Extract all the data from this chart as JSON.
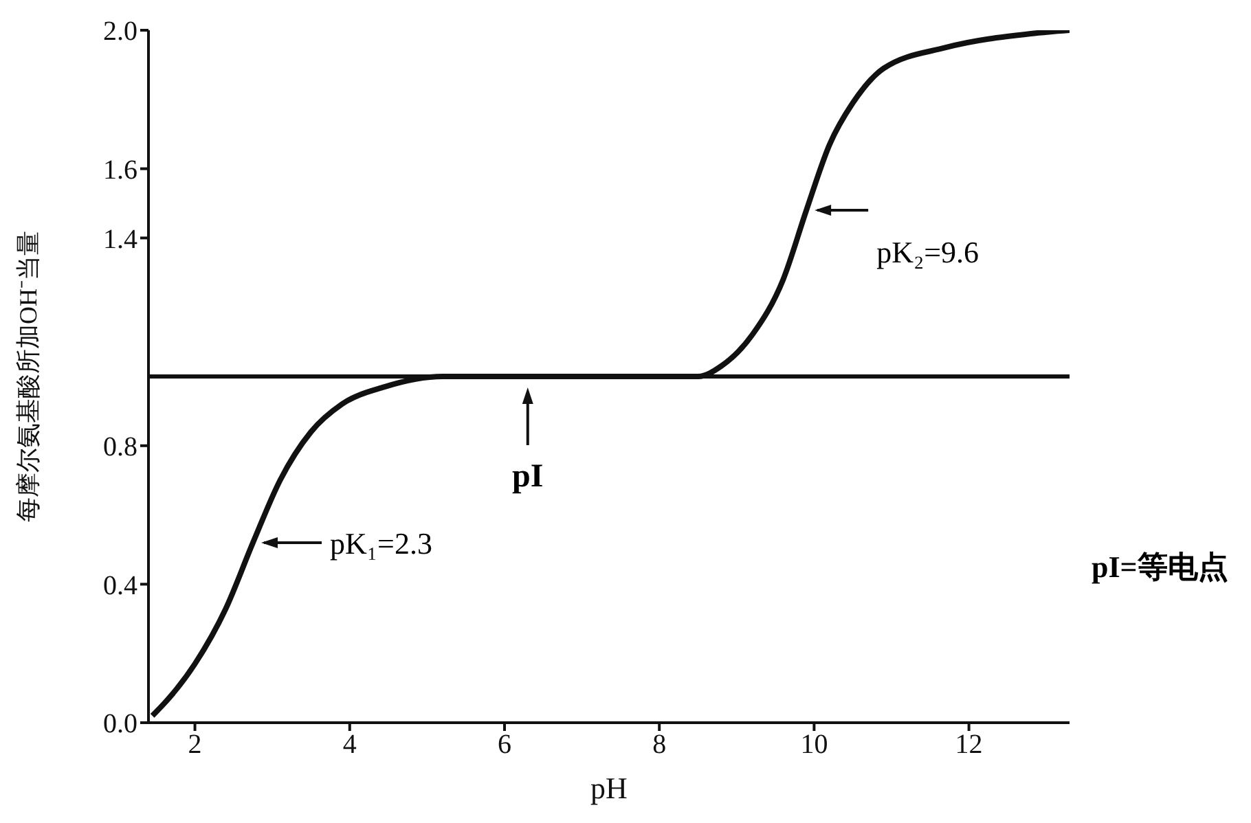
{
  "chart_data": {
    "type": "line",
    "xlabel": "pH",
    "ylabel": "每摩尔氨基酸所加OH⁻当量",
    "x": [
      1.45,
      1.7,
      2.0,
      2.4,
      2.75,
      3.1,
      3.5,
      3.9,
      4.45,
      5.2,
      6.0,
      7.0,
      8.0,
      8.5,
      8.8,
      9.2,
      9.6,
      9.9,
      10.2,
      10.5,
      10.9,
      11.7,
      12.8,
      13.3
    ],
    "series": [
      {
        "color": "#111111",
        "values": [
          0.02,
          0.08,
          0.17,
          0.33,
          0.52,
          0.7,
          0.84,
          0.92,
          0.97,
          1.0,
          1.0,
          1.0,
          1.0,
          1.0,
          1.03,
          1.12,
          1.28,
          1.48,
          1.67,
          1.79,
          1.89,
          1.95,
          1.99,
          2.0
        ]
      }
    ],
    "xlim": [
      1.4,
      13.3
    ],
    "xticks": [
      2,
      4,
      6,
      8,
      10,
      12
    ],
    "ylim": [
      0,
      2
    ],
    "yticks": [
      {
        "value": 0,
        "label": "0.0"
      },
      0.4,
      0.8,
      1.4,
      1.6,
      {
        "value": 2,
        "label": "2.0"
      }
    ],
    "ref_lines": [
      {
        "axis": "y",
        "value": 1.0,
        "color": "#111111"
      }
    ],
    "annotations": [
      {
        "text": "pK₁=2.3",
        "x": 2.75,
        "y": 0.52
      },
      {
        "text": "pK₂=9.6",
        "x": 9.9,
        "y": 1.48
      },
      {
        "text": "pI",
        "x": 6.3,
        "y": 1.0
      },
      "pI=等电点"
    ],
    "grid": false,
    "legend": false,
    "marker": "none",
    "line_style": "solid"
  }
}
